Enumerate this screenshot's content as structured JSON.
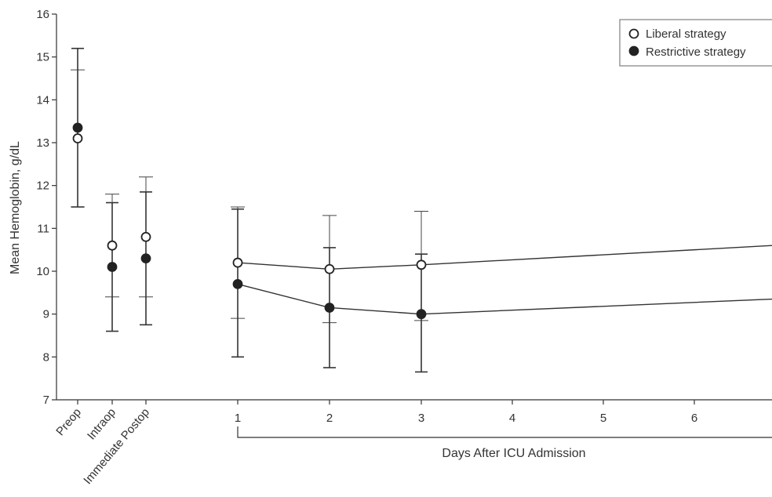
{
  "chart_data": {
    "type": "scatter",
    "title": "",
    "ylabel": "Mean Hemoglobin, g/dL",
    "xlabel": "Days After ICU Admission",
    "ylim": [
      7,
      16
    ],
    "yticks": [
      7,
      8,
      9,
      10,
      11,
      12,
      13,
      14,
      15,
      16
    ],
    "categories": [
      "Preop",
      "Intraop",
      "Immediate Postop",
      "1",
      "2",
      "3",
      "4",
      "5",
      "6"
    ],
    "legend_position": "top-right",
    "series": [
      {
        "name": "Liberal strategy",
        "marker": "open-circle",
        "points": [
          {
            "x": "Preop",
            "y": 13.1,
            "lower": 11.5,
            "upper": 14.7
          },
          {
            "x": "Intraop",
            "y": 10.6,
            "lower": 9.4,
            "upper": 11.8
          },
          {
            "x": "Immediate Postop",
            "y": 10.8,
            "lower": 9.4,
            "upper": 12.2
          },
          {
            "x": "1",
            "y": 10.2,
            "lower": 8.9,
            "upper": 11.5
          },
          {
            "x": "2",
            "y": 10.05,
            "lower": 8.8,
            "upper": 11.3
          },
          {
            "x": "3",
            "y": 10.15,
            "lower": 8.85,
            "upper": 11.4
          }
        ],
        "trend_line": [
          {
            "x": "1",
            "y": 10.2
          },
          {
            "x": "2",
            "y": 10.05
          },
          {
            "x": "3",
            "y": 10.15
          },
          {
            "x": "edge",
            "y": 10.6
          }
        ]
      },
      {
        "name": "Restrictive strategy",
        "marker": "filled-circle",
        "points": [
          {
            "x": "Preop",
            "y": 13.35,
            "lower": 11.5,
            "upper": 15.2
          },
          {
            "x": "Intraop",
            "y": 10.1,
            "lower": 8.6,
            "upper": 11.6
          },
          {
            "x": "Immediate Postop",
            "y": 10.3,
            "lower": 8.75,
            "upper": 11.85
          },
          {
            "x": "1",
            "y": 9.7,
            "lower": 8.0,
            "upper": 11.45
          },
          {
            "x": "2",
            "y": 9.15,
            "lower": 7.75,
            "upper": 10.55
          },
          {
            "x": "3",
            "y": 9.0,
            "lower": 7.65,
            "upper": 10.4
          }
        ],
        "trend_line": [
          {
            "x": "1",
            "y": 9.7
          },
          {
            "x": "2",
            "y": 9.15
          },
          {
            "x": "3",
            "y": 9.0
          },
          {
            "x": "edge",
            "y": 9.35
          }
        ]
      }
    ]
  }
}
